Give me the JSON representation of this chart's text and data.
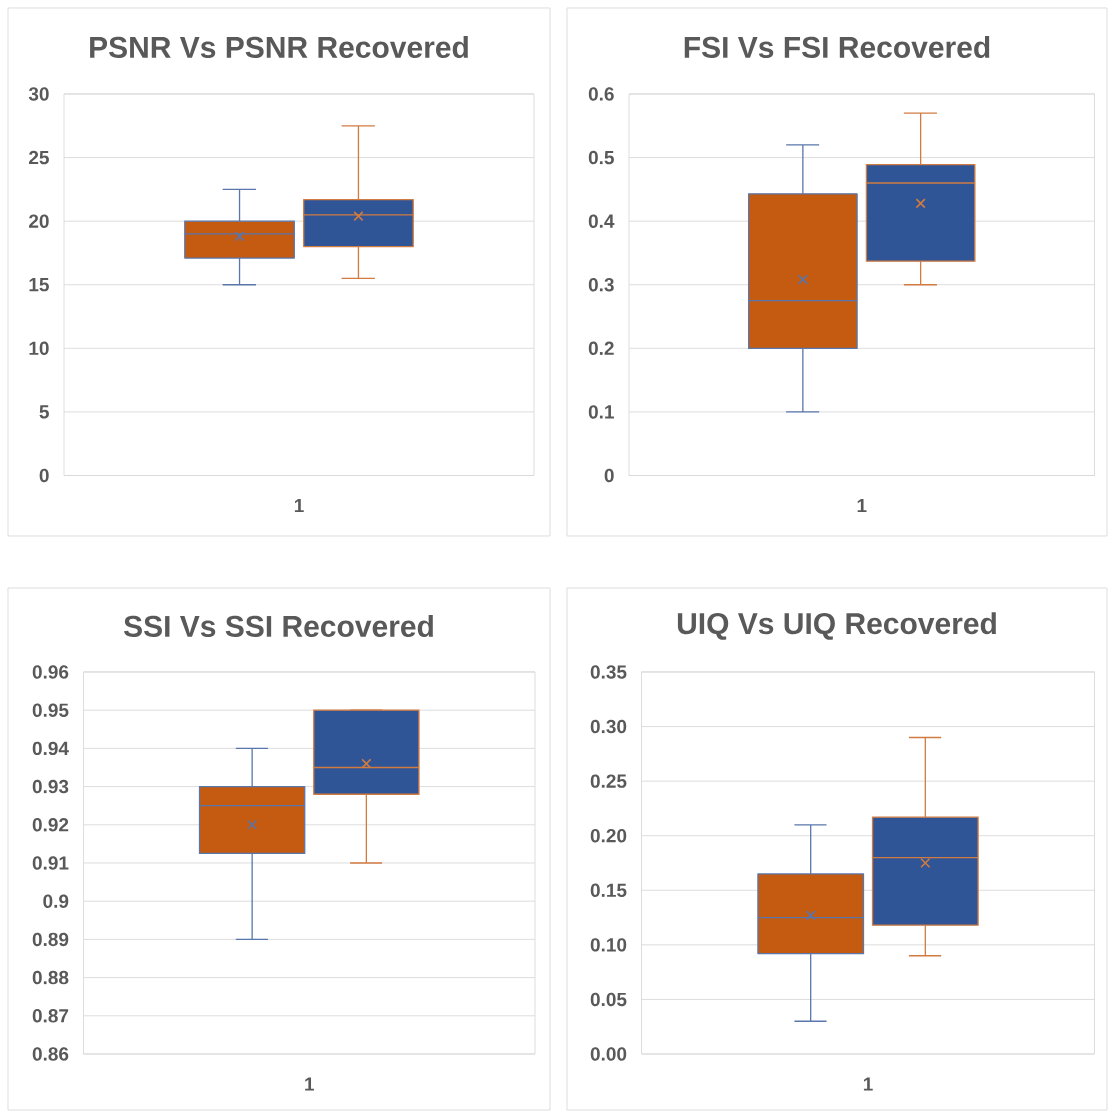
{
  "chart_data": [
    {
      "type": "box",
      "title": "PSNR Vs PSNR Recovered",
      "categories": [
        "1"
      ],
      "series": [
        {
          "color": "#c55a11",
          "boxes": [
            {
              "low": 15,
              "q1": 17.1,
              "median": 19,
              "q3": 20,
              "high": 22.5,
              "mean": 18.8
            }
          ]
        },
        {
          "color": "#2f5597",
          "boxes": [
            {
              "low": 15.5,
              "q1": 18,
              "median": 20.5,
              "q3": 21.7,
              "high": 27.5,
              "mean": 20.4
            }
          ]
        }
      ],
      "ylim": [
        0,
        30
      ],
      "yticks": [
        0,
        5,
        10,
        15,
        20,
        25,
        30
      ],
      "grid": "y"
    },
    {
      "type": "box",
      "title": "FSI Vs FSI Recovered",
      "categories": [
        "1"
      ],
      "series": [
        {
          "color": "#c55a11",
          "boxes": [
            {
              "low": 0.1,
              "q1": 0.2,
              "median": 0.275,
              "q3": 0.443,
              "high": 0.52,
              "mean": 0.308
            }
          ]
        },
        {
          "color": "#2f5597",
          "boxes": [
            {
              "low": 0.3,
              "q1": 0.337,
              "median": 0.46,
              "q3": 0.489,
              "high": 0.57,
              "mean": 0.428
            }
          ]
        }
      ],
      "ylim": [
        0,
        0.6
      ],
      "yticks": [
        0,
        0.1,
        0.2,
        0.3,
        0.4,
        0.5,
        0.6
      ],
      "grid": "y"
    },
    {
      "type": "box",
      "title": "SSI Vs SSI Recovered",
      "categories": [
        "1"
      ],
      "series": [
        {
          "color": "#c55a11",
          "boxes": [
            {
              "low": 0.89,
              "q1": 0.9125,
              "median": 0.925,
              "q3": 0.93,
              "high": 0.94,
              "mean": 0.92
            }
          ]
        },
        {
          "color": "#2f5597",
          "boxes": [
            {
              "low": 0.91,
              "q1": 0.928,
              "median": 0.935,
              "q3": 0.95,
              "high": 0.95,
              "mean": 0.936
            }
          ]
        }
      ],
      "ylim": [
        0.86,
        0.96
      ],
      "yticks": [
        0.86,
        0.87,
        0.88,
        0.89,
        0.9,
        0.91,
        0.92,
        0.93,
        0.94,
        0.95,
        0.96
      ],
      "grid": "y"
    },
    {
      "type": "box",
      "title": "UIQ Vs UIQ Recovered",
      "categories": [
        "1"
      ],
      "series": [
        {
          "color": "#c55a11",
          "boxes": [
            {
              "low": 0.03,
              "q1": 0.092,
              "median": 0.125,
              "q3": 0.165,
              "high": 0.21,
              "mean": 0.127
            }
          ]
        },
        {
          "color": "#2f5597",
          "boxes": [
            {
              "low": 0.09,
              "q1": 0.118,
              "median": 0.18,
              "q3": 0.217,
              "high": 0.29,
              "mean": 0.175
            }
          ]
        }
      ],
      "ylim": [
        0,
        0.35
      ],
      "yticks": [
        {
          "value": 0,
          "label": "0.00"
        },
        0.05,
        {
          "value": 0.1,
          "label": "0.10"
        },
        0.15,
        {
          "value": 0.2,
          "label": "0.20"
        },
        0.25,
        {
          "value": 0.3,
          "label": "0.30"
        },
        0.35
      ],
      "grid": "y"
    }
  ]
}
